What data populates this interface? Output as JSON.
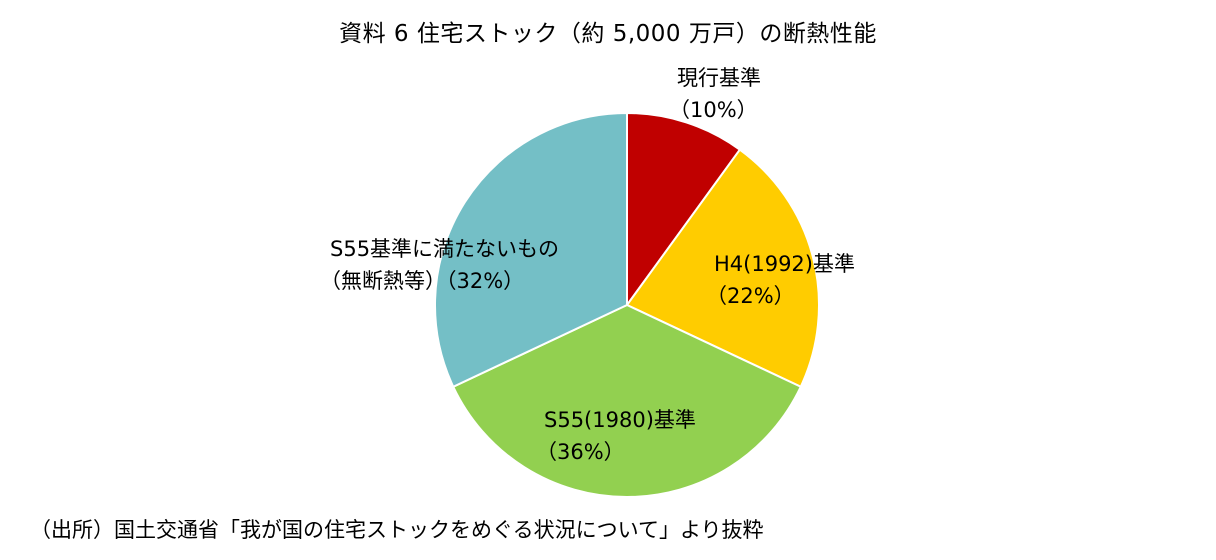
{
  "title": "資料 6  住宅ストック（約 5,000 万戸）の断熱性能",
  "source": "（出所）国土交通省「我が国の住宅ストックをめぐる状況について」より抜粋",
  "chart_data": {
    "type": "pie",
    "title": "資料 6  住宅ストック（約 5,000 万戸）の断熱性能",
    "slices": [
      {
        "name": "現行基準",
        "value": 10,
        "pct_label": "（10%）",
        "color": "#C00000"
      },
      {
        "name": "H4(1992)基準",
        "value": 22,
        "pct_label": "（22%）",
        "color": "#FFCC00"
      },
      {
        "name": "S55(1980)基準",
        "value": 36,
        "pct_label": "（36%）",
        "color": "#92D050"
      },
      {
        "name": "S55基準に満たないもの",
        "value": 32,
        "pct_label": "（無断熱等）（32%）",
        "color": "#74BFC6"
      }
    ]
  }
}
